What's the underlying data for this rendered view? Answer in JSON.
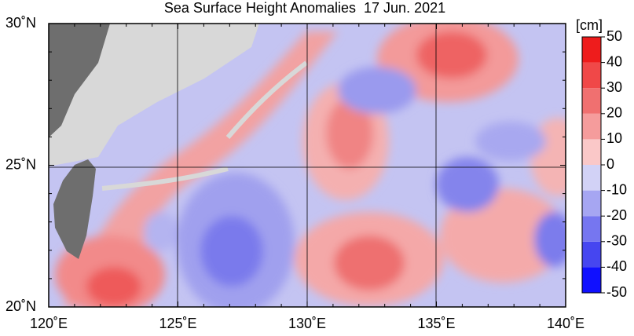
{
  "title": "Sea Surface Height Anomalies  17 Jun. 2021",
  "axes": {
    "lon_labels": [
      "120˚E",
      "125˚E",
      "130˚E",
      "135˚E",
      "140˚E"
    ],
    "lat_labels": [
      "30˚N",
      "25˚N",
      "20˚N"
    ]
  },
  "colorbar": {
    "unit": "[cm]",
    "lim": [
      -50,
      50
    ],
    "ticks": [
      50,
      40,
      30,
      20,
      10,
      0,
      -10,
      -20,
      -30,
      -40,
      -50
    ]
  }
}
